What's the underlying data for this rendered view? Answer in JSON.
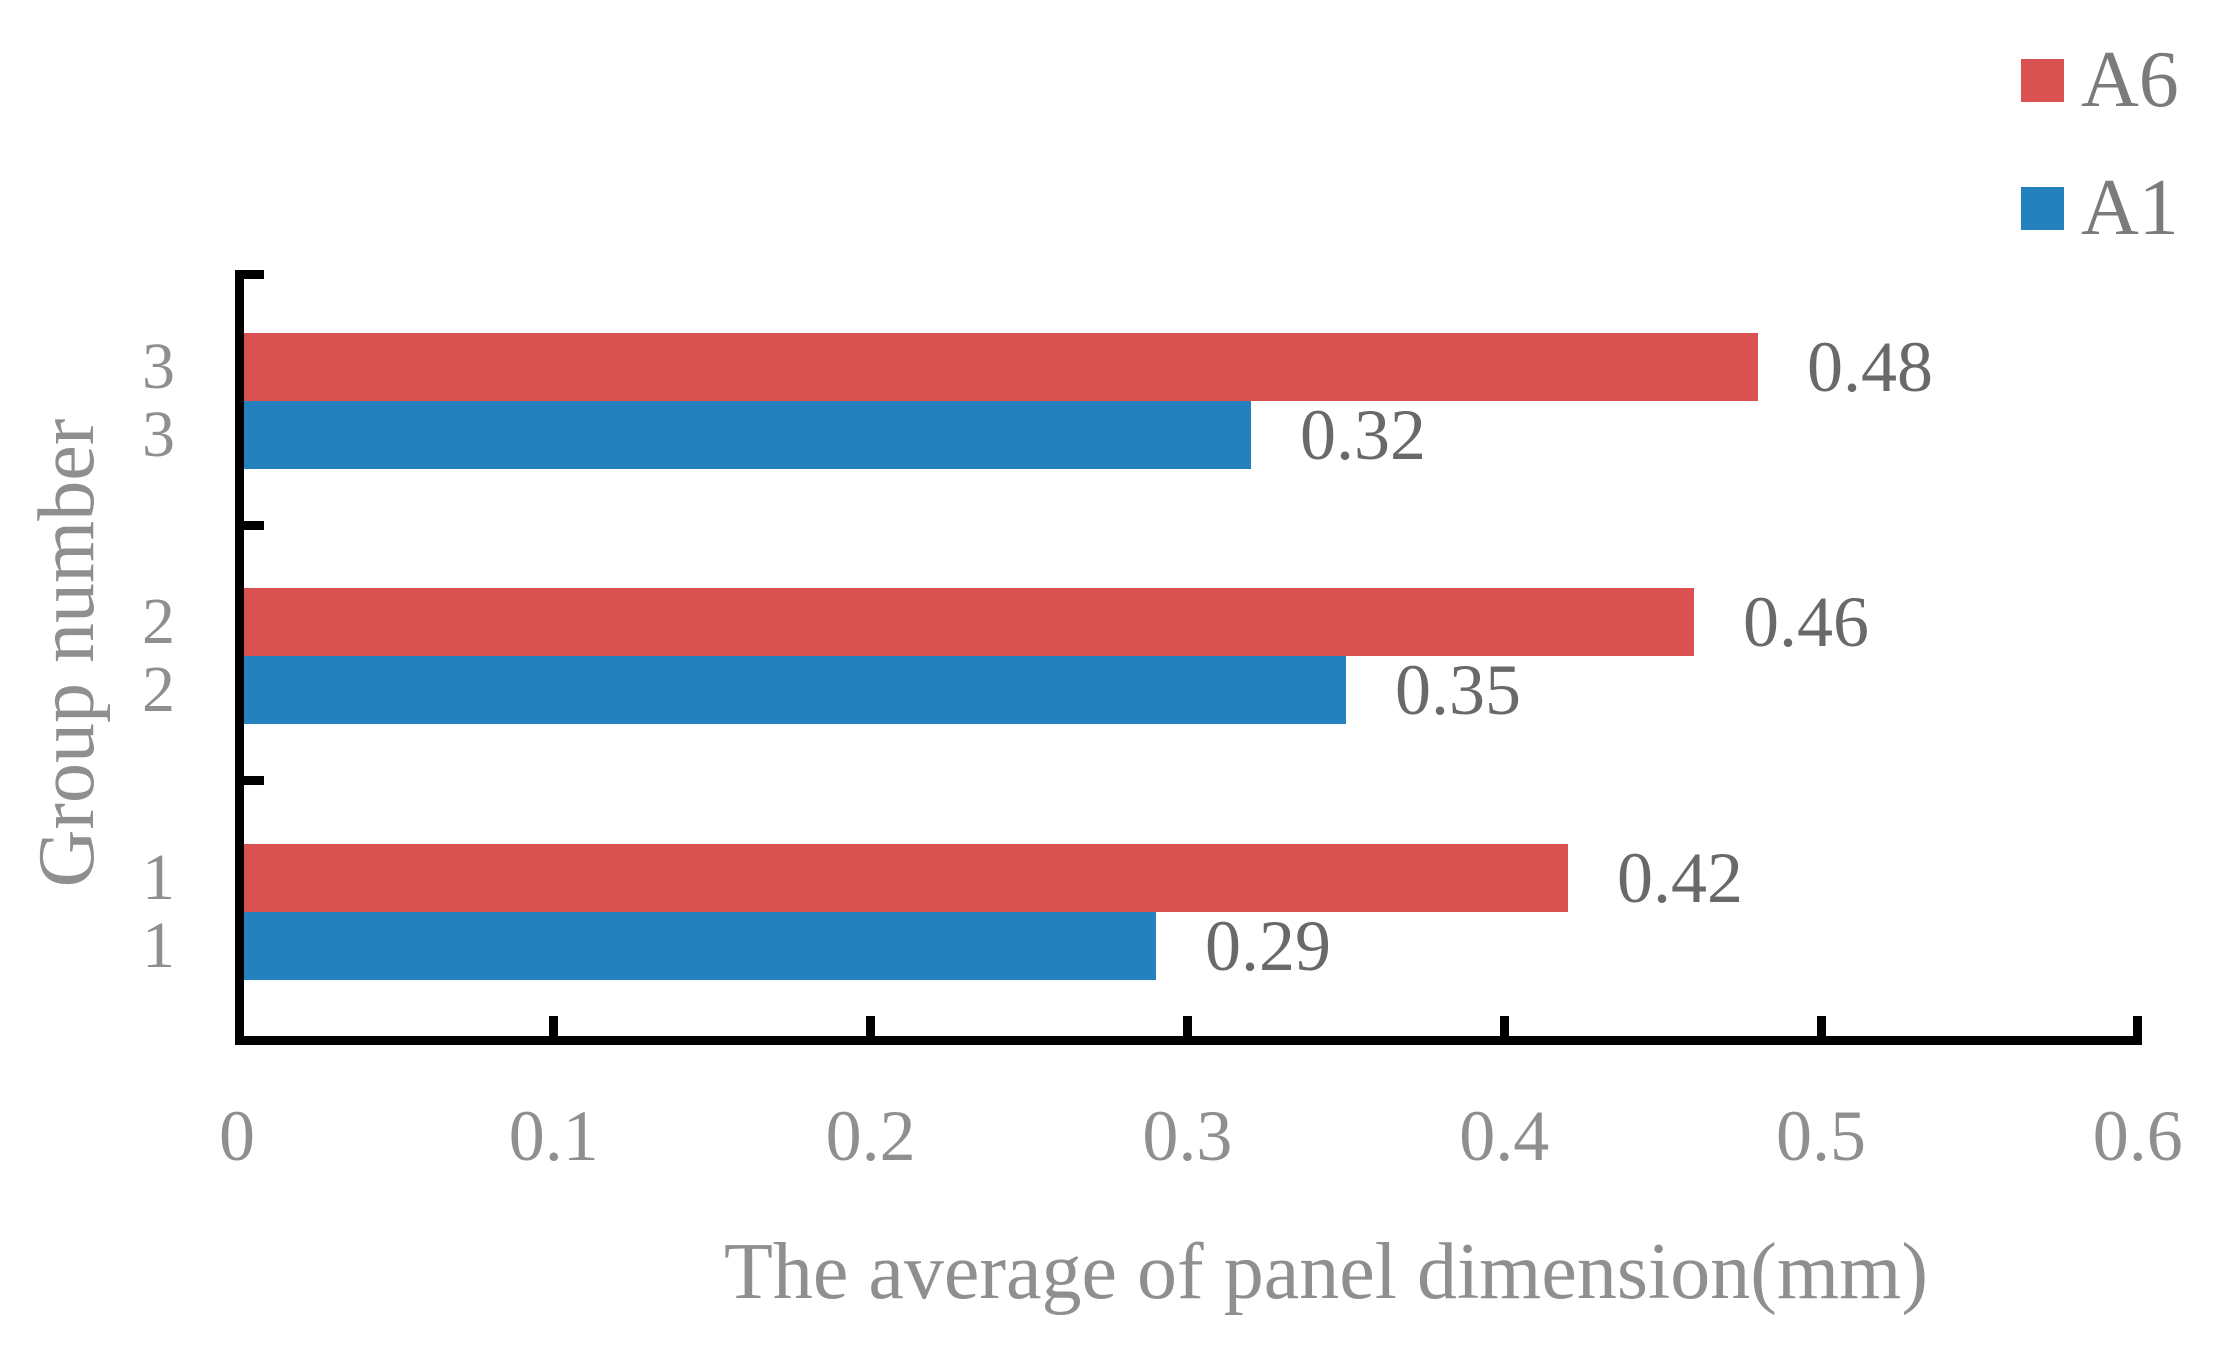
{
  "chart_data": {
    "type": "bar",
    "orientation": "horizontal",
    "title": "",
    "xlabel": "The average of panel dimension(mm)",
    "ylabel": "Group number",
    "categories": [
      "1",
      "2",
      "3"
    ],
    "series": [
      {
        "name": "A6",
        "color": "#d95150",
        "values": [
          0.42,
          0.46,
          0.48
        ]
      },
      {
        "name": "A1",
        "color": "#2581be",
        "values": [
          0.29,
          0.35,
          0.32
        ]
      }
    ],
    "data_labels_shown": true,
    "xlim": [
      0,
      0.6
    ],
    "xticks": [
      "0",
      "0.1",
      "0.2",
      "0.3",
      "0.4",
      "0.5",
      "0.6"
    ],
    "grid": false,
    "legend_position": "top-right",
    "axis_color": "#000000",
    "tick_label_color": "#8f8f8f",
    "data_label_color": "#696969",
    "legend_text_color": "#7b7b7b"
  }
}
